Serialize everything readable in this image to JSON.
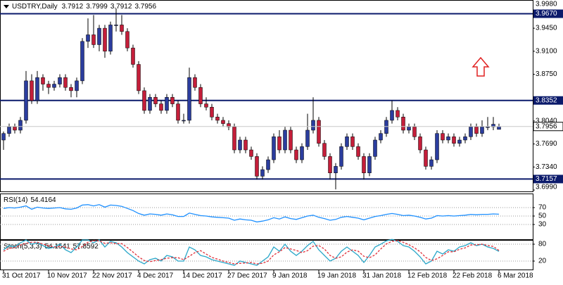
{
  "chart_data": [
    {
      "type": "candlestick",
      "title": "USDTRY,Daily",
      "categories": [
        "31 Oct 2017",
        null,
        null,
        null,
        null,
        null,
        null,
        null,
        "10 Nov 2017",
        null,
        null,
        null,
        null,
        null,
        null,
        null,
        "22 Nov 2017",
        null,
        null,
        null,
        null,
        null,
        null,
        null,
        "4 Dec 2017",
        null,
        null,
        null,
        null,
        null,
        null,
        null,
        "14 Dec 2017",
        null,
        null,
        null,
        null,
        null,
        null,
        null,
        "27 Dec 2017",
        null,
        null,
        null,
        null,
        null,
        null,
        null,
        "9 Jan 2018",
        null,
        null,
        null,
        null,
        null,
        null,
        null,
        "19 Jan 2018",
        null,
        null,
        null,
        null,
        null,
        null,
        null,
        "31 Jan 2018",
        null,
        null,
        null,
        null,
        null,
        null,
        null,
        "12 Feb 2018",
        null,
        null,
        null,
        null,
        null,
        null,
        null,
        "22 Feb 2018",
        null,
        null,
        null,
        null,
        null,
        null,
        null,
        "6 Mar 2018"
      ],
      "open": [
        3.775,
        3.785,
        3.795,
        3.79,
        3.805,
        3.865,
        3.835,
        3.87,
        3.86,
        3.855,
        3.86,
        3.87,
        3.855,
        3.85,
        3.865,
        3.925,
        3.935,
        3.92,
        3.945,
        3.91,
        3.95,
        3.95,
        3.94,
        3.915,
        3.89,
        3.85,
        3.82,
        3.84,
        3.83,
        3.82,
        3.84,
        3.83,
        3.805,
        3.805,
        3.87,
        3.855,
        3.83,
        3.825,
        3.81,
        3.805,
        3.8,
        3.795,
        3.76,
        3.775,
        3.76,
        3.75,
        3.72,
        3.73,
        3.745,
        3.78,
        3.76,
        3.79,
        3.76,
        3.745,
        3.765,
        3.79,
        3.805,
        3.77,
        3.75,
        3.725,
        3.735,
        3.765,
        3.78,
        3.765,
        3.75,
        3.725,
        3.75,
        3.775,
        3.785,
        3.805,
        3.82,
        3.81,
        3.79,
        3.795,
        3.78,
        3.76,
        3.735,
        3.745,
        3.785,
        3.775,
        3.78,
        3.77,
        3.775,
        3.78,
        3.795,
        3.785,
        3.795,
        3.795,
        3.7912
      ],
      "high": [
        3.788,
        3.8,
        3.8,
        3.81,
        3.88,
        3.875,
        3.88,
        3.875,
        3.865,
        3.865,
        3.875,
        3.875,
        3.86,
        3.87,
        3.93,
        3.96,
        3.965,
        3.95,
        3.95,
        3.955,
        3.975,
        3.965,
        3.945,
        3.92,
        3.895,
        3.855,
        3.845,
        3.845,
        3.835,
        3.845,
        3.845,
        3.835,
        3.815,
        3.885,
        3.875,
        3.86,
        3.84,
        3.83,
        3.815,
        3.81,
        3.805,
        3.8,
        3.78,
        3.78,
        3.765,
        3.755,
        3.735,
        3.75,
        3.785,
        3.79,
        3.795,
        3.795,
        3.765,
        3.77,
        3.815,
        3.84,
        3.81,
        3.775,
        3.755,
        3.74,
        3.77,
        3.785,
        3.785,
        3.77,
        3.755,
        3.755,
        3.78,
        3.79,
        3.81,
        3.835,
        3.825,
        3.815,
        3.8,
        3.8,
        3.785,
        3.765,
        3.75,
        3.79,
        3.79,
        3.785,
        3.785,
        3.78,
        3.785,
        3.8,
        3.8,
        3.805,
        3.81,
        3.81,
        3.7999
      ],
      "low": [
        3.76,
        3.78,
        3.785,
        3.785,
        3.8,
        3.83,
        3.83,
        3.85,
        3.845,
        3.85,
        3.855,
        3.85,
        3.84,
        3.84,
        3.86,
        3.915,
        3.915,
        3.91,
        3.9,
        3.905,
        3.94,
        3.935,
        3.91,
        3.885,
        3.845,
        3.815,
        3.815,
        3.825,
        3.815,
        3.815,
        3.825,
        3.8,
        3.8,
        3.8,
        3.85,
        3.825,
        3.82,
        3.805,
        3.8,
        3.795,
        3.79,
        3.755,
        3.755,
        3.755,
        3.745,
        3.715,
        3.715,
        3.725,
        3.74,
        3.755,
        3.755,
        3.755,
        3.74,
        3.74,
        3.76,
        3.785,
        3.765,
        3.745,
        3.715,
        3.7,
        3.73,
        3.76,
        3.76,
        3.745,
        3.715,
        3.72,
        3.745,
        3.77,
        3.78,
        3.8,
        3.805,
        3.785,
        3.785,
        3.775,
        3.755,
        3.73,
        3.73,
        3.74,
        3.77,
        3.77,
        3.765,
        3.765,
        3.77,
        3.775,
        3.78,
        3.78,
        3.79,
        3.79,
        3.7912
      ],
      "close": [
        3.785,
        3.795,
        3.79,
        3.805,
        3.865,
        3.835,
        3.87,
        3.86,
        3.855,
        3.86,
        3.87,
        3.855,
        3.85,
        3.865,
        3.925,
        3.935,
        3.92,
        3.945,
        3.91,
        3.95,
        3.95,
        3.94,
        3.915,
        3.89,
        3.85,
        3.82,
        3.84,
        3.83,
        3.82,
        3.84,
        3.83,
        3.805,
        3.805,
        3.87,
        3.855,
        3.83,
        3.825,
        3.81,
        3.805,
        3.8,
        3.795,
        3.76,
        3.775,
        3.76,
        3.75,
        3.72,
        3.73,
        3.745,
        3.78,
        3.76,
        3.79,
        3.76,
        3.745,
        3.765,
        3.79,
        3.805,
        3.77,
        3.75,
        3.725,
        3.735,
        3.765,
        3.78,
        3.765,
        3.75,
        3.725,
        3.75,
        3.775,
        3.785,
        3.805,
        3.82,
        3.81,
        3.79,
        3.795,
        3.78,
        3.76,
        3.735,
        3.745,
        3.785,
        3.775,
        3.78,
        3.77,
        3.775,
        3.78,
        3.795,
        3.785,
        3.795,
        3.795,
        3.799,
        3.7956
      ],
      "up_color": "#2b3d9e",
      "down_color": "#c41e3a",
      "wick_color": "#000000",
      "ylim": [
        3.6969,
        3.9879
      ],
      "yticks": [
        {
          "value": 3.998,
          "label": "3.9980"
        },
        {
          "value": 3.945,
          "label": "3.9450"
        },
        {
          "value": 3.91,
          "label": "3.9100"
        },
        {
          "value": 3.875,
          "label": "3.8750"
        },
        {
          "value": 3.804,
          "label": "3.8040"
        },
        {
          "value": 3.769,
          "label": "3.7690"
        },
        {
          "value": 3.734,
          "label": "3.7340"
        },
        {
          "value": 3.699,
          "label": "3.6990"
        }
      ],
      "levels": [
        {
          "value": 3.967,
          "label": "3.9670"
        },
        3.8352,
        3.7157
      ],
      "level_color": "#0b1a6b"
    },
    {
      "type": "line",
      "title": "RSI(14)",
      "ylim": [
        0,
        100
      ],
      "yticks": [
        30,
        50,
        70
      ],
      "series": [
        {
          "color": "#1e90ff",
          "values": [
            68,
            70,
            69,
            71,
            74,
            66,
            71,
            69,
            68,
            69,
            70,
            67,
            66,
            69,
            76,
            77,
            74,
            77,
            71,
            76,
            75,
            73,
            68,
            63,
            56,
            52,
            55,
            54,
            52,
            55,
            53,
            49,
            49,
            57,
            54,
            51,
            50,
            48,
            47,
            46,
            45,
            40,
            43,
            41,
            40,
            36,
            38,
            41,
            46,
            43,
            48,
            44,
            42,
            46,
            50,
            52,
            47,
            44,
            40,
            42,
            47,
            49,
            47,
            45,
            41,
            45,
            49,
            51,
            54,
            56,
            54,
            51,
            52,
            50,
            47,
            43,
            45,
            51,
            50,
            51,
            50,
            51,
            52,
            54,
            53,
            54,
            54,
            55,
            54.4164
          ]
        }
      ]
    },
    {
      "type": "line",
      "title": "Stoch(5,3,3)",
      "ylim": [
        0,
        100
      ],
      "yticks": [
        20,
        80
      ],
      "series": [
        {
          "color": "#2aa7c9",
          "values": [
            60,
            75,
            70,
            85,
            95,
            80,
            85,
            75,
            65,
            70,
            80,
            60,
            50,
            70,
            95,
            95,
            85,
            95,
            70,
            90,
            85,
            70,
            50,
            35,
            20,
            10,
            25,
            30,
            20,
            40,
            35,
            20,
            20,
            70,
            60,
            40,
            35,
            25,
            20,
            15,
            10,
            5,
            20,
            15,
            10,
            5,
            20,
            35,
            70,
            55,
            80,
            55,
            40,
            55,
            75,
            90,
            60,
            40,
            20,
            30,
            55,
            70,
            55,
            40,
            15,
            40,
            70,
            80,
            92,
            97,
            90,
            75,
            70,
            55,
            35,
            10,
            20,
            55,
            45,
            60,
            55,
            70,
            75,
            85,
            75,
            80,
            70,
            65,
            54.1541
          ]
        },
        {
          "color": "#e0303a",
          "dash": true,
          "values": [
            55,
            65,
            68,
            77,
            83,
            87,
            87,
            80,
            75,
            70,
            72,
            70,
            63,
            60,
            72,
            87,
            92,
            92,
            83,
            85,
            82,
            82,
            68,
            52,
            35,
            22,
            18,
            22,
            25,
            30,
            32,
            32,
            25,
            37,
            50,
            57,
            45,
            33,
            27,
            20,
            15,
            10,
            12,
            13,
            15,
            10,
            12,
            20,
            42,
            53,
            68,
            63,
            58,
            50,
            57,
            73,
            75,
            63,
            40,
            30,
            35,
            52,
            60,
            55,
            37,
            32,
            42,
            63,
            81,
            90,
            93,
            87,
            78,
            67,
            53,
            33,
            22,
            28,
            40,
            53,
            53,
            62,
            67,
            77,
            78,
            80,
            75,
            72,
            57.8592
          ]
        }
      ]
    }
  ]
}
